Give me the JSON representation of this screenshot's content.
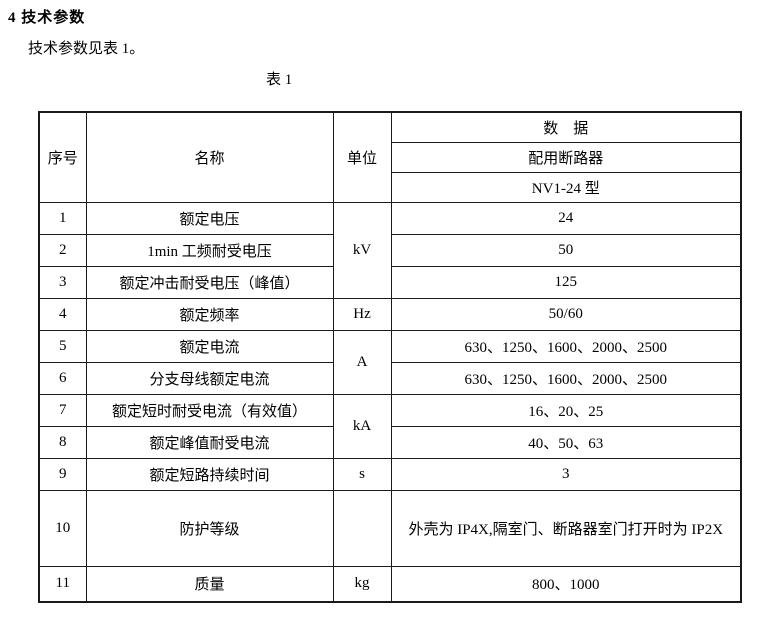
{
  "page": {
    "heading": "4 技术参数",
    "intro": "技术参数见表 1。",
    "table_caption": "表 1"
  },
  "table": {
    "headers": {
      "no": "序号",
      "name": "名称",
      "unit": "单位",
      "data_group": "数　据",
      "breaker": "配用断路器",
      "model": "NV1-24 型"
    },
    "rows": [
      {
        "no": "1",
        "name": "额定电压",
        "unit": "kV",
        "value": "24"
      },
      {
        "no": "2",
        "name": "1min 工频耐受电压",
        "value": "50"
      },
      {
        "no": "3",
        "name": "额定冲击耐受电压（峰值）",
        "value": "125"
      },
      {
        "no": "4",
        "name": "额定频率",
        "unit": "Hz",
        "value": "50/60"
      },
      {
        "no": "5",
        "name": "额定电流",
        "unit": "A",
        "value": "630、1250、1600、2000、2500"
      },
      {
        "no": "6",
        "name": "分支母线额定电流",
        "value": "630、1250、1600、2000、2500"
      },
      {
        "no": "7",
        "name": "额定短时耐受电流（有效值）",
        "unit": "kA",
        "value": "16、20、25"
      },
      {
        "no": "8",
        "name": "额定峰值耐受电流",
        "value": "40、50、63"
      },
      {
        "no": "9",
        "name": "额定短路持续时间",
        "unit": "s",
        "value": "3"
      },
      {
        "no": "10",
        "name": "防护等级",
        "unit": "",
        "value": "外壳为 IP4X,隔室门、断路器室门打开时为 IP2X"
      },
      {
        "no": "11",
        "name": "质量",
        "unit": "kg",
        "value": "800、1000"
      }
    ]
  }
}
